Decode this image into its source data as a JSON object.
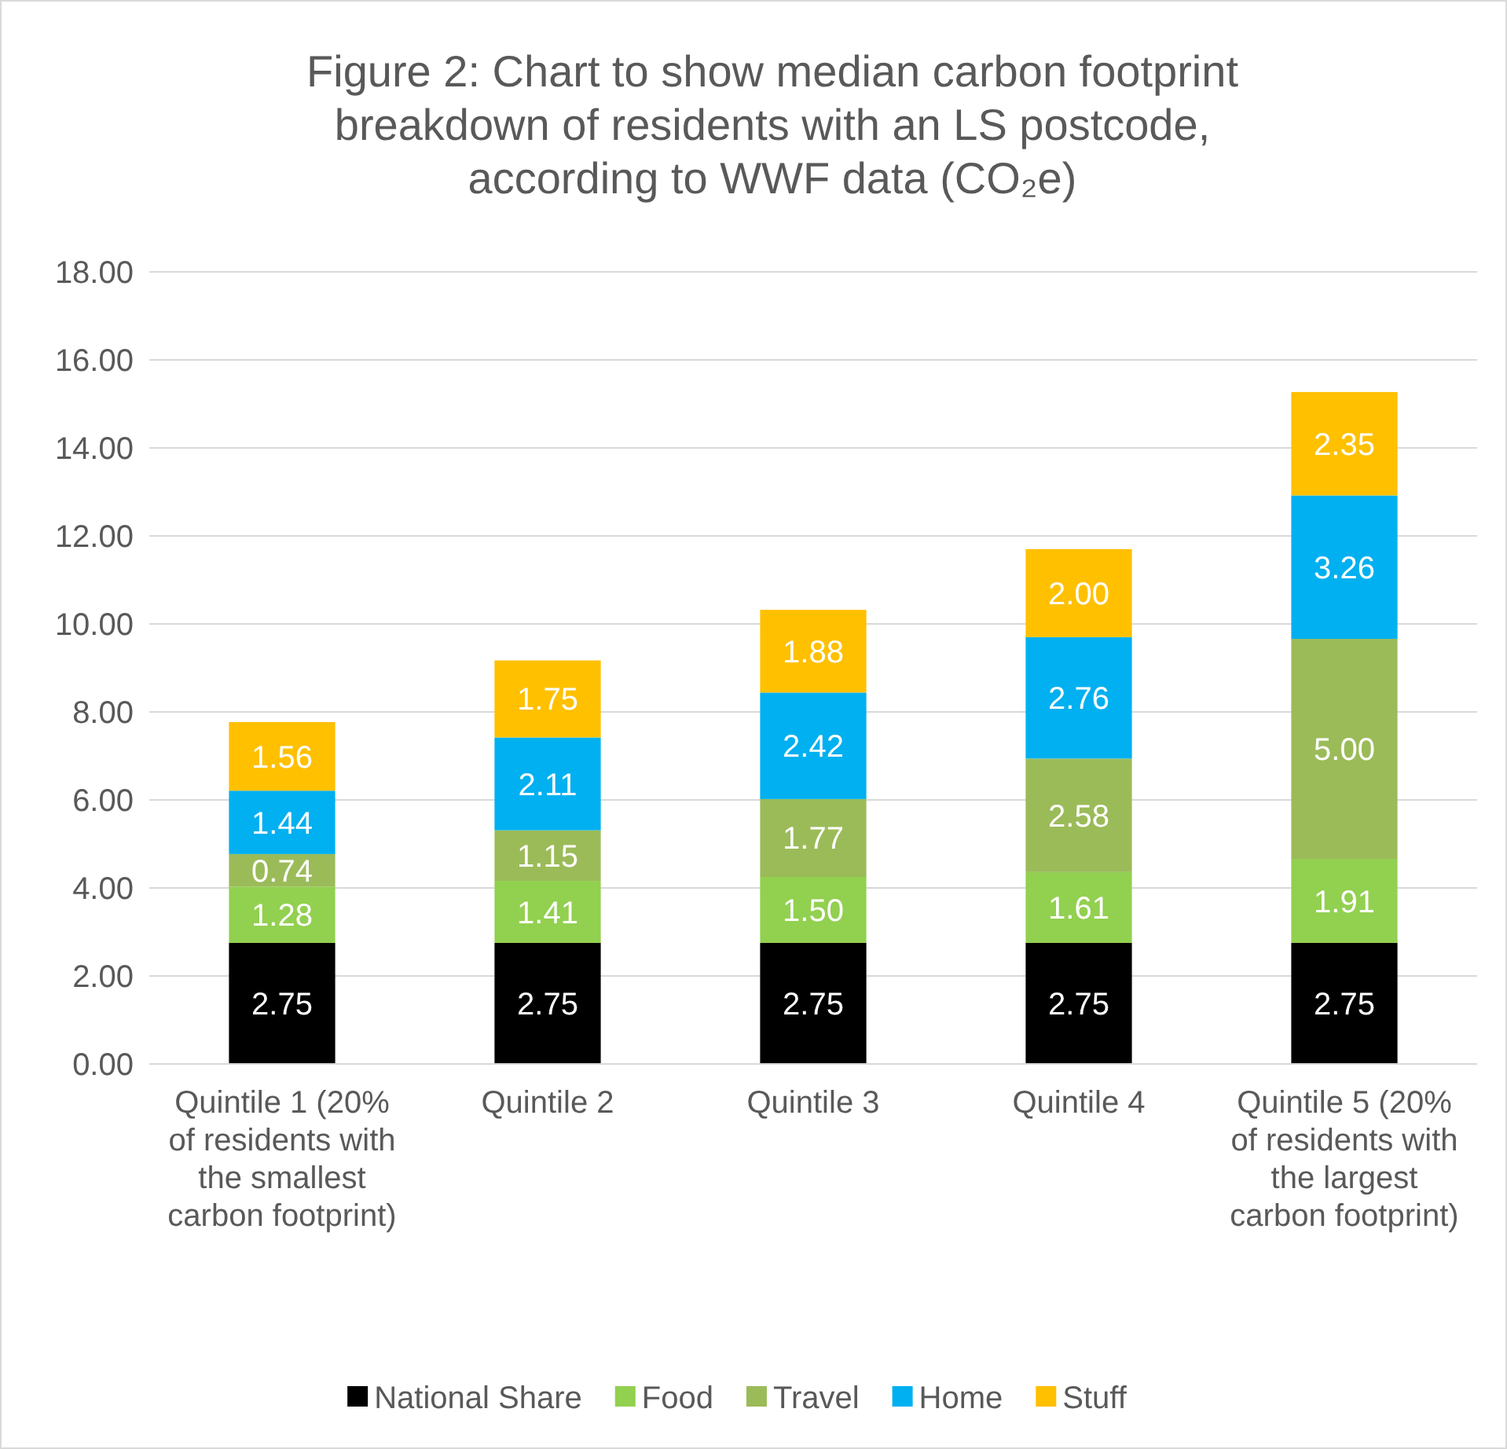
{
  "chart_data": {
    "type": "bar",
    "stacked": true,
    "title": "Figure 2: Chart to show median carbon footprint breakdown of residents with an LS postcode, according to WWF data (CO₂e)",
    "categories": [
      "Quintile 1 (20% of residents with the smallest carbon footprint)",
      "Quintile 2",
      "Quintile 3",
      "Quintile 4",
      "Quintile 5 (20% of residents with the largest carbon footprint)"
    ],
    "series": [
      {
        "name": "National Share",
        "color": "#000000",
        "values": [
          2.75,
          2.75,
          2.75,
          2.75,
          2.75
        ],
        "value_labels": [
          "2.75",
          "2.75",
          "2.75",
          "2.75",
          "2.75"
        ]
      },
      {
        "name": "Food",
        "color": "#92d050",
        "values": [
          1.28,
          1.41,
          1.5,
          1.61,
          1.91
        ],
        "value_labels": [
          "1.28",
          "1.41",
          "1.50",
          "1.61",
          "1.91"
        ]
      },
      {
        "name": "Travel",
        "color": "#9bbb59",
        "values": [
          0.74,
          1.15,
          1.77,
          2.58,
          5.0
        ],
        "value_labels": [
          "0.74",
          "1.15",
          "1.77",
          "2.58",
          "5.00"
        ]
      },
      {
        "name": "Home",
        "color": "#00b0f0",
        "values": [
          1.44,
          2.11,
          2.42,
          2.76,
          3.26
        ],
        "value_labels": [
          "1.44",
          "2.11",
          "2.42",
          "2.76",
          "3.26"
        ]
      },
      {
        "name": "Stuff",
        "color": "#ffc000",
        "values": [
          1.56,
          1.75,
          1.88,
          2.0,
          2.35
        ],
        "value_labels": [
          "1.56",
          "1.75",
          "1.88",
          "2.00",
          "2.35"
        ]
      }
    ],
    "ylim": [
      0,
      18
    ],
    "yticks": [
      {
        "value": 0,
        "label": "0.00"
      },
      {
        "value": 2,
        "label": "2.00"
      },
      {
        "value": 4,
        "label": "4.00"
      },
      {
        "value": 6,
        "label": "6.00"
      },
      {
        "value": 8,
        "label": "8.00"
      },
      {
        "value": 10,
        "label": "10.00"
      },
      {
        "value": 12,
        "label": "12.00"
      },
      {
        "value": 14,
        "label": "14.00"
      },
      {
        "value": 16,
        "label": "16.00"
      },
      {
        "value": 18,
        "label": "18.00"
      }
    ],
    "grid": "y",
    "legend": "bottom"
  }
}
